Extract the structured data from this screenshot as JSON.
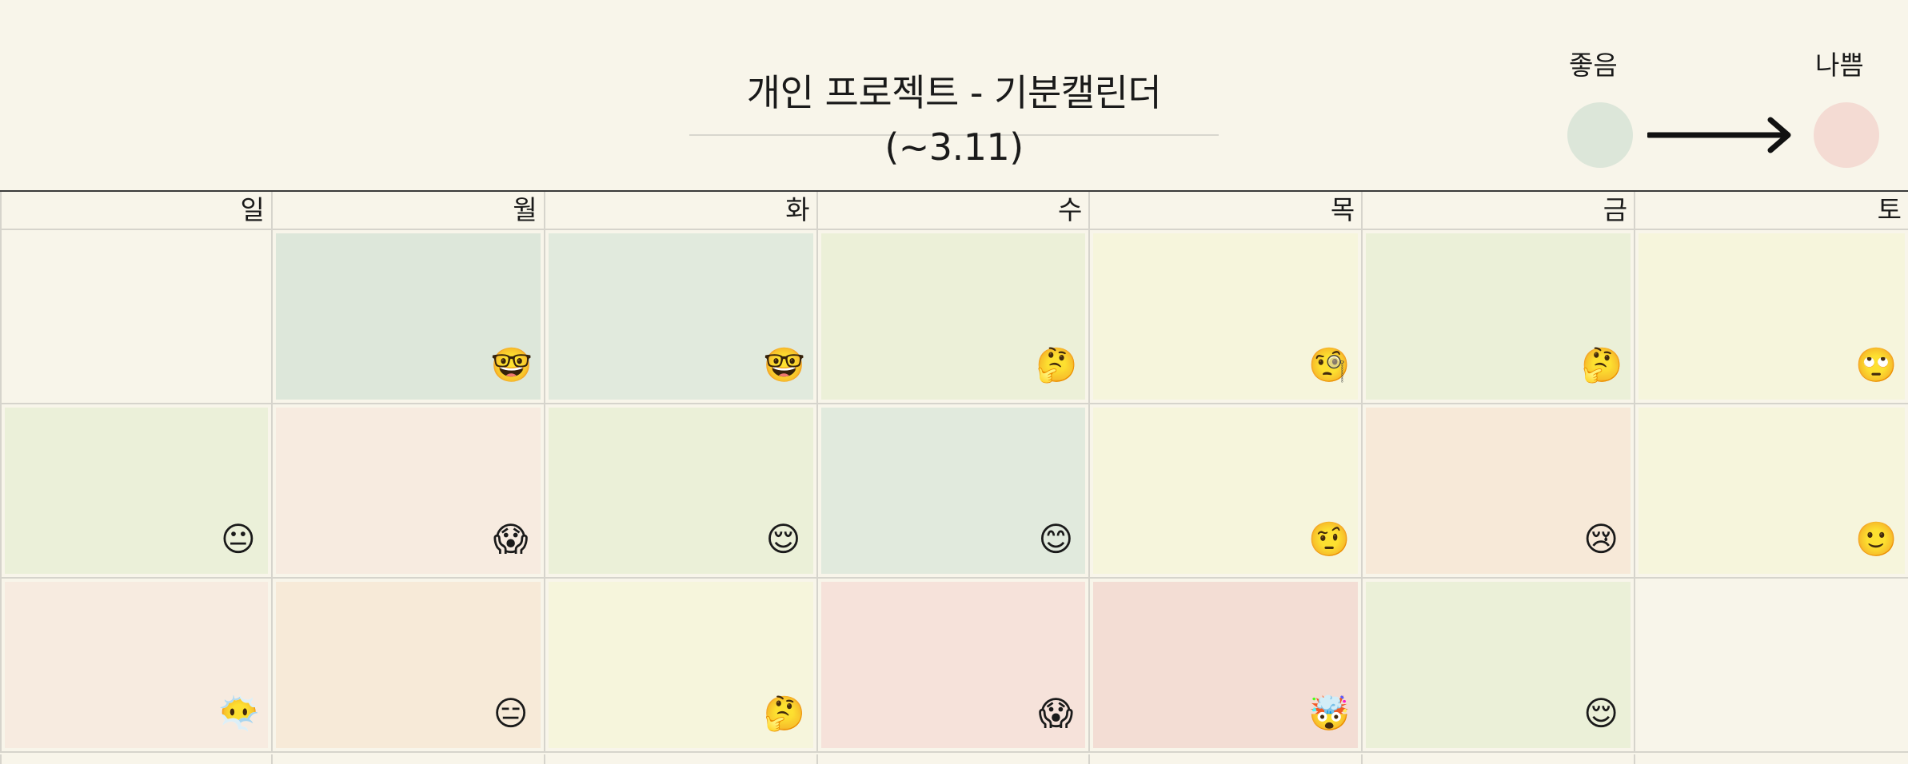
{
  "header": {
    "title": "개인 프로젝트 - 기분캘린더(~3.11)"
  },
  "legend": {
    "good_label": "좋음",
    "bad_label": "나쁨",
    "good_color": "#dce6d9",
    "bad_color": "#f4dbd3"
  },
  "weekdays": [
    "일",
    "월",
    "화",
    "수",
    "목",
    "금",
    "토"
  ],
  "weeks": [
    [
      {
        "color": "#f8f5ea",
        "emoji": ""
      },
      {
        "color": "#dde7da",
        "emoji": "🤓"
      },
      {
        "color": "#e1eadd",
        "emoji": "🤓"
      },
      {
        "color": "#ecf0d8",
        "emoji": "🤔"
      },
      {
        "color": "#f6f5dc",
        "emoji": "🧐"
      },
      {
        "color": "#ebf0d8",
        "emoji": "🤔"
      },
      {
        "color": "#f6f5dc",
        "emoji": "🙄"
      }
    ],
    [
      {
        "color": "#ebf0d9",
        "emoji": "😐"
      },
      {
        "color": "#f7ebe0",
        "emoji": "😱"
      },
      {
        "color": "#ebf0d8",
        "emoji": "😌"
      },
      {
        "color": "#e1eadd",
        "emoji": "😊"
      },
      {
        "color": "#f6f5dc",
        "emoji": "🤨"
      },
      {
        "color": "#f7e9d8",
        "emoji": "😢"
      },
      {
        "color": "#f6f5dc",
        "emoji": "🙂"
      }
    ],
    [
      {
        "color": "#f7ebe0",
        "emoji": "😶‍🌫️"
      },
      {
        "color": "#f7ead8",
        "emoji": "😑"
      },
      {
        "color": "#f6f5dc",
        "emoji": "🤔"
      },
      {
        "color": "#f6e2da",
        "emoji": "😱"
      },
      {
        "color": "#f3ddd4",
        "emoji": "🤯"
      },
      {
        "color": "#ebf0d8",
        "emoji": "😌"
      },
      {
        "color": "#f8f5ea",
        "emoji": ""
      }
    ]
  ]
}
